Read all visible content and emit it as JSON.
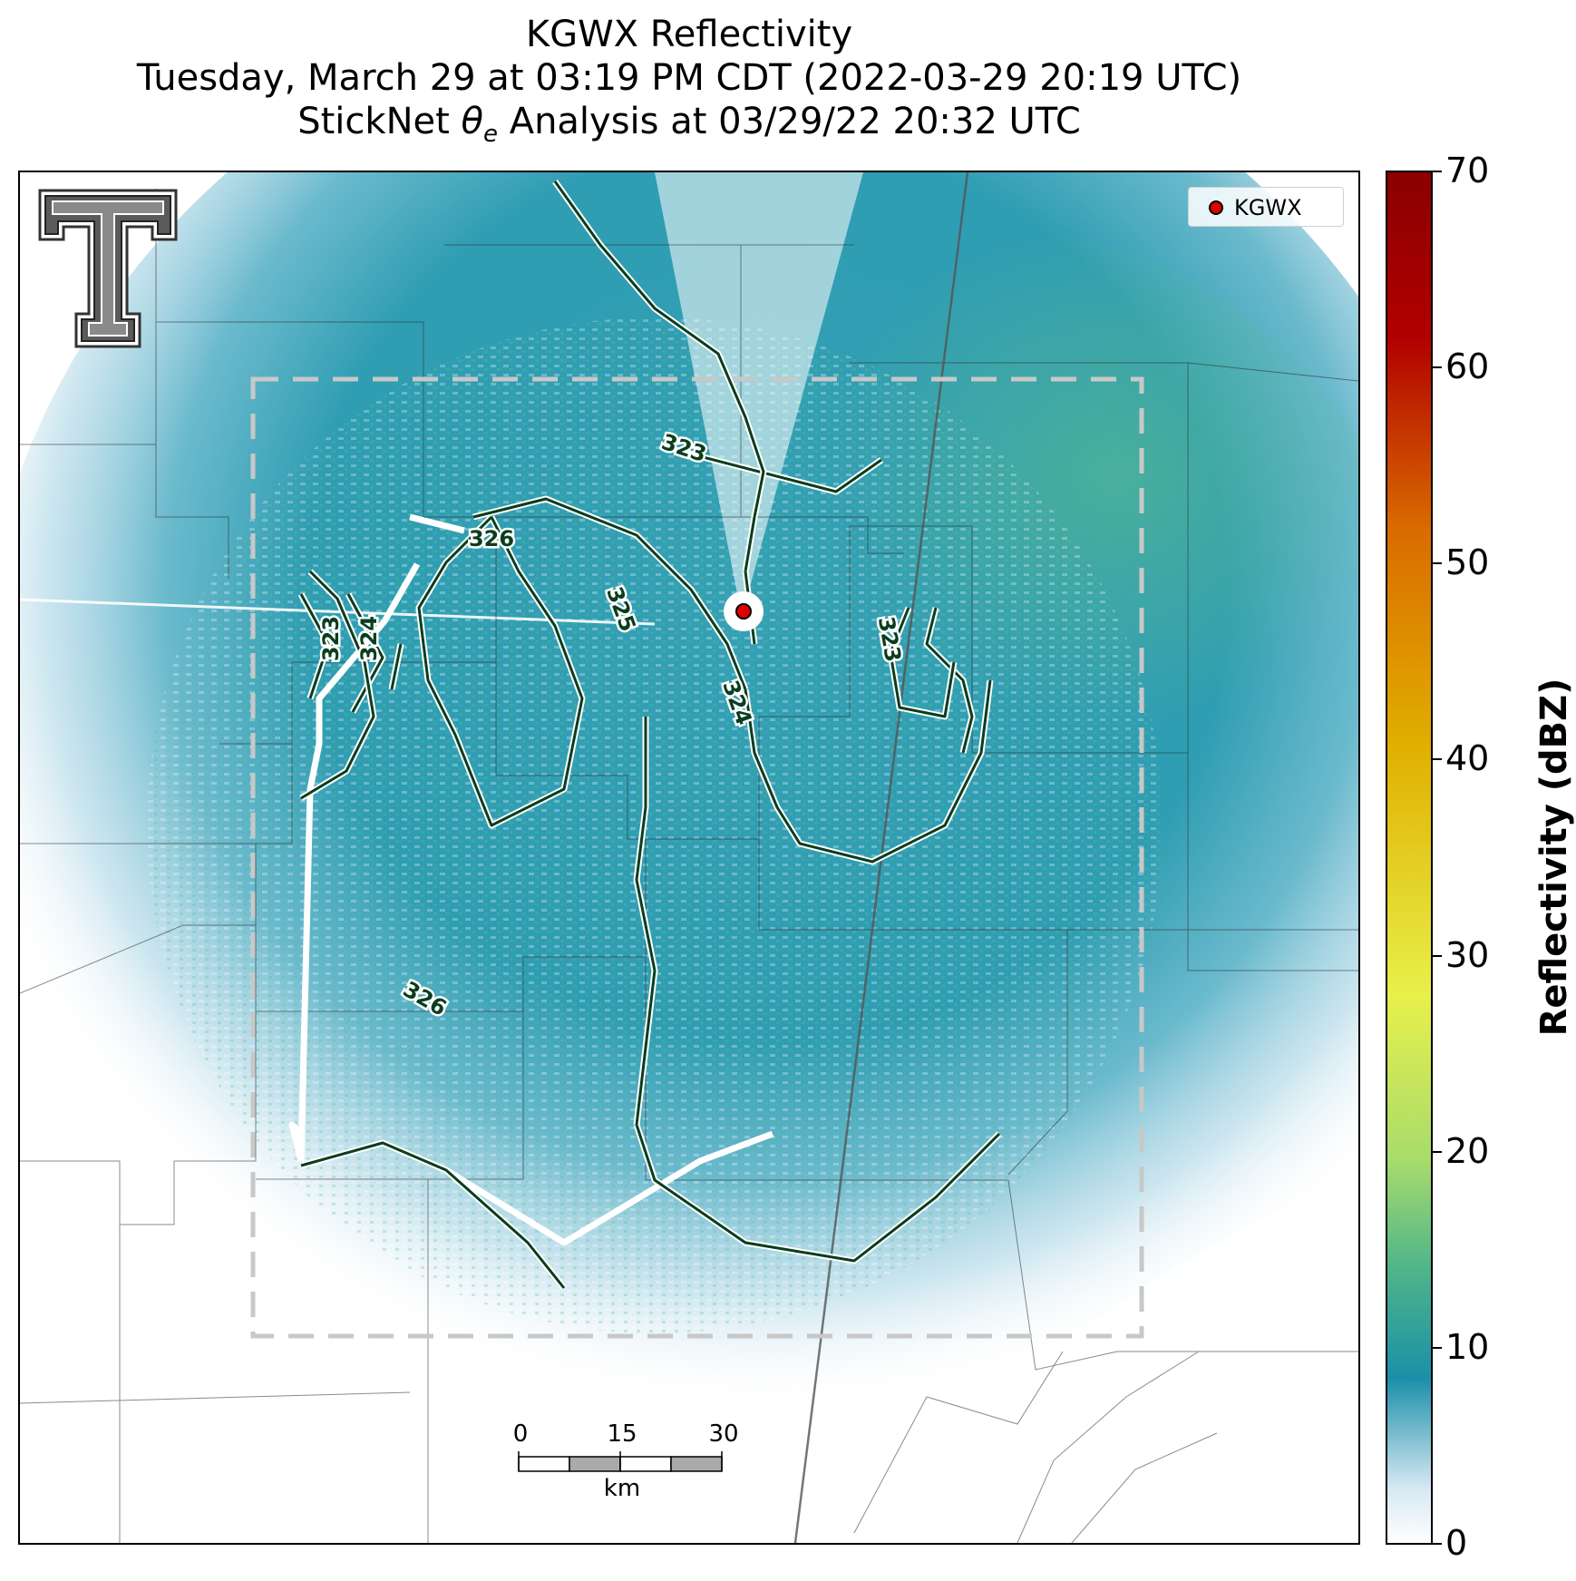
{
  "header": {
    "line1": "KGWX Reflectivity",
    "line2": "Tuesday, March 29 at 03:19 PM CDT (2022-03-29 20:19 UTC)",
    "line3": "StickNet θe Analysis at 03/29/22 20:32 UTC"
  },
  "legend": {
    "label": "KGWX",
    "marker_color": "#e00000"
  },
  "colorbar": {
    "label": "Reflectivity (dBZ)",
    "ticks": [
      "0",
      "10",
      "20",
      "30",
      "40",
      "50",
      "60",
      "70"
    ],
    "range": [
      0,
      70
    ],
    "stops": [
      "#ffffff",
      "#d6e8f3",
      "#1b8fa8",
      "#4fb58a",
      "#a8dc6c",
      "#e8f04a",
      "#e0b000",
      "#d96b00",
      "#b00000",
      "#8b0000"
    ]
  },
  "contour_labels": [
    "323",
    "323",
    "324",
    "326",
    "325",
    "324",
    "323",
    "326"
  ],
  "scalebar": {
    "ticks": [
      "0",
      "15",
      "30"
    ],
    "unit": "km"
  },
  "radar_site": {
    "name": "KGWX",
    "marker_color": "#e00000"
  },
  "icons": {
    "logo": "texas-tech-double-t-logo-icon"
  }
}
